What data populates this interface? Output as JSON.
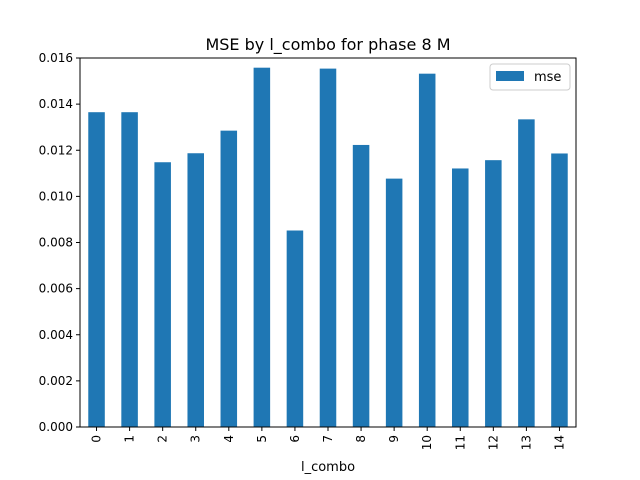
{
  "chart_data": {
    "type": "bar",
    "title": "MSE by l_combo for phase 8 M",
    "xlabel": "l_combo",
    "ylabel": "",
    "categories": [
      "0",
      "1",
      "2",
      "3",
      "4",
      "5",
      "6",
      "7",
      "8",
      "9",
      "10",
      "11",
      "12",
      "13",
      "14"
    ],
    "series": [
      {
        "name": "mse",
        "color": "#1f77b4",
        "values": [
          0.01365,
          0.01365,
          0.01148,
          0.01187,
          0.01285,
          0.01558,
          0.00852,
          0.01554,
          0.01223,
          0.01077,
          0.01532,
          0.01121,
          0.01157,
          0.01334,
          0.01186
        ]
      }
    ],
    "ylim": [
      0,
      0.016
    ],
    "yticks": [
      0.0,
      0.002,
      0.004,
      0.006,
      0.008,
      0.01,
      0.012,
      0.014,
      0.016
    ],
    "ytick_labels": [
      "0.000",
      "0.002",
      "0.004",
      "0.006",
      "0.008",
      "0.010",
      "0.012",
      "0.014",
      "0.016"
    ],
    "grid": false,
    "legend": "top-right"
  }
}
